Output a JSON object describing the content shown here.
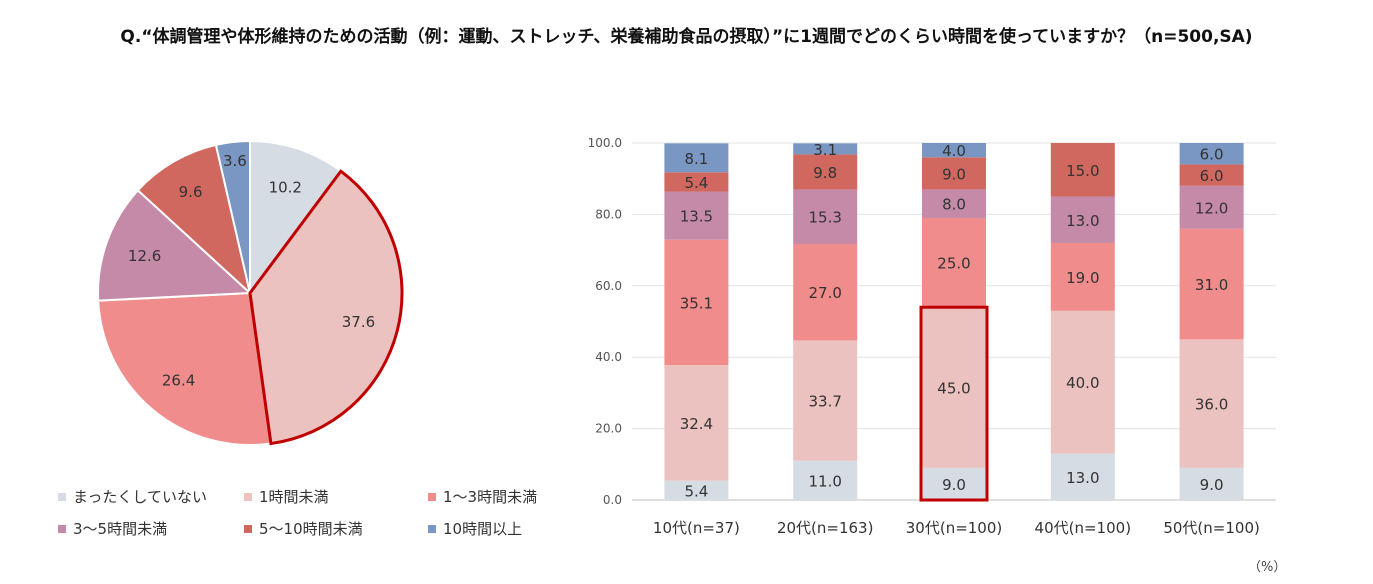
{
  "title": "Q.“体調管理や体形維持のための活動（例：運動、ストレッチ、栄養補助食品の摂取）”に1週間でどのくらい時間を使っていますか？（n=500,SA)",
  "unit_label": "（%）",
  "colors": {
    "none": "#d6dce4",
    "lt1": "#ecc2c0",
    "h1to3": "#f08c8c",
    "h3to5": "#c48aa8",
    "h5to10": "#d0685f",
    "ge10": "#7a97c3",
    "highlight": "#c00000"
  },
  "chart_data": [
    {
      "type": "pie",
      "categories": [
        "まったくしていない",
        "1時間未満",
        "1～3時間未満",
        "3～5時間未満",
        "5～10時間未満",
        "10時間以上"
      ],
      "values": [
        10.2,
        37.6,
        26.4,
        12.6,
        9.6,
        3.6
      ],
      "value_labels": [
        "10.2",
        "37.6",
        "26.4",
        "12.6",
        "9.6",
        "3.6"
      ],
      "highlighted": "1時間未満",
      "legend": "bottom"
    },
    {
      "type": "bar",
      "stacked": true,
      "categories": [
        "10代(n=37)",
        "20代(n=163)",
        "30代(n=100)",
        "40代(n=100)",
        "50代(n=100)"
      ],
      "series": [
        {
          "name": "まったくしていない",
          "values": [
            5.4,
            11.0,
            9.0,
            13.0,
            9.0
          ],
          "labels": [
            "5.4",
            "11.0",
            "9.0",
            "13.0",
            "9.0"
          ]
        },
        {
          "name": "1時間未満",
          "values": [
            32.4,
            33.7,
            45.0,
            40.0,
            36.0
          ],
          "labels": [
            "32.4",
            "33.7",
            "45.0",
            "40.0",
            "36.0"
          ]
        },
        {
          "name": "1～3時間未満",
          "values": [
            35.1,
            27.0,
            25.0,
            19.0,
            31.0
          ],
          "labels": [
            "35.1",
            "27.0",
            "25.0",
            "19.0",
            "31.0"
          ]
        },
        {
          "name": "3～5時間未満",
          "values": [
            13.5,
            15.3,
            8.0,
            13.0,
            12.0
          ],
          "labels": [
            "13.5",
            "15.3",
            "8.0",
            "13.0",
            "12.0"
          ]
        },
        {
          "name": "5～10時間未満",
          "values": [
            5.4,
            9.8,
            9.0,
            15.0,
            6.0
          ],
          "labels": [
            "5.4",
            "9.8",
            "9.0",
            "15.0",
            "6.0"
          ]
        },
        {
          "name": "10時間以上",
          "values": [
            8.1,
            3.1,
            4.0,
            0.0,
            6.0
          ],
          "labels": [
            "8.1",
            "3.1",
            "4.0",
            "",
            "6.0"
          ]
        }
      ],
      "yticks": [
        "0.0",
        "20.0",
        "40.0",
        "60.0",
        "80.0",
        "100.0"
      ],
      "ylim": [
        0,
        100
      ],
      "grid": true,
      "highlight": {
        "category": "30代(n=100)",
        "series": "1時間未満"
      }
    }
  ]
}
